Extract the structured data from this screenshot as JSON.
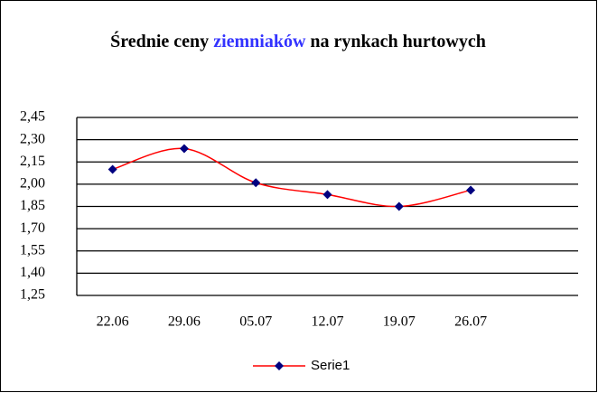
{
  "chart_data": {
    "type": "line",
    "title": [
      "Średnie ceny",
      "ziemniaków",
      "na rynkach hurtowych"
    ],
    "categories": [
      "22.06",
      "29.06",
      "05.07",
      "12.07",
      "19.07",
      "26.07",
      null
    ],
    "series": [
      {
        "name": "Serie1",
        "color": "#ff0000",
        "marker_color": "#000080",
        "values": [
          2.1,
          2.24,
          2.01,
          1.93,
          1.85,
          1.96,
          null
        ]
      }
    ],
    "ylim": [
      1.25,
      2.45
    ],
    "yticks": [
      {
        "value": 1.25,
        "label": "1,25"
      },
      {
        "value": 1.4,
        "label": "1,40"
      },
      {
        "value": 1.55,
        "label": "1,55"
      },
      {
        "value": 1.7,
        "label": "1,70"
      },
      {
        "value": 1.85,
        "label": "1,85"
      },
      {
        "value": 2.0,
        "label": "2,00"
      },
      {
        "value": 2.15,
        "label": "2,15"
      },
      {
        "value": 2.3,
        "label": "2,30"
      },
      {
        "value": 2.45,
        "label": "2,45"
      }
    ],
    "grid": true,
    "smooth": true,
    "legend": "bottom"
  }
}
